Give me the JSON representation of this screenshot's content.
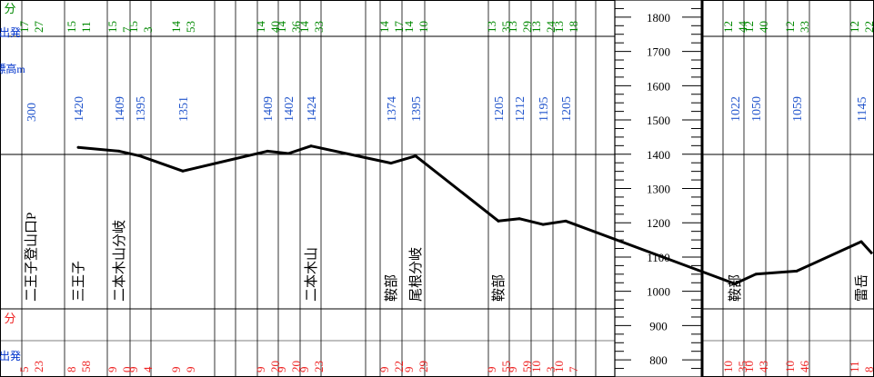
{
  "chart_data": {
    "type": "line",
    "xlabel": "",
    "ylabel": "",
    "ylim": [
      750,
      1850
    ],
    "grid": true,
    "colors": {
      "line": "#000000",
      "top": "#0033cc",
      "elev": "#2255cc",
      "green": "#008800",
      "red": "#ee2222",
      "grid": "#000000"
    },
    "header": {
      "tail_label": "分",
      "depart_label": "出発",
      "elev_label": "標高m",
      "time_label": "分",
      "bottom_depart": "出発"
    },
    "y_ticks": [
      1800,
      1700,
      1600,
      1500,
      1400,
      1300,
      1200,
      1100,
      1000,
      900,
      800
    ],
    "points": [
      {
        "name": "二王子登山口P",
        "elev": 300,
        "top_h": "17",
        "top_m": "27",
        "bot_h": "5",
        "bot_m": "23",
        "elev_label": "300"
      },
      {
        "name": "三王子",
        "elev": 1420,
        "top_h": "15",
        "top_m": "11",
        "bot_h": "8",
        "bot_m": "58",
        "elev_label": "1420"
      },
      {
        "name": "二本木山分岐",
        "elev": 1409,
        "top_h": "15",
        "top_m": "7",
        "bot_h": "9",
        "bot_m": "0",
        "elev_label": "1409"
      },
      {
        "name": "",
        "elev": 1395,
        "top_h": "15",
        "top_m": "3",
        "bot_h": "9",
        "bot_m": "4",
        "elev_label": "1395"
      },
      {
        "name": "",
        "elev": 1351,
        "top_h": "14",
        "top_m": "53",
        "bot_h": "9",
        "bot_m": "9",
        "elev_label": "1351"
      },
      {
        "name": "",
        "elev": 1409,
        "top_h": "14",
        "top_m": "40",
        "bot_h": "9",
        "bot_m": "20",
        "elev_label": "1409"
      },
      {
        "name": "",
        "elev": 1402,
        "top_h": "14",
        "top_m": "36",
        "bot_h": "9",
        "bot_m": "20",
        "elev_label": "1402"
      },
      {
        "name": "二本木山",
        "elev": 1424,
        "top_h": "14",
        "top_m": "33",
        "bot_h": "9",
        "bot_m": "23",
        "elev_label": "1424"
      },
      {
        "name": "鞍部",
        "elev": 1374,
        "top_h": "14",
        "top_m": "17",
        "bot_h": "9",
        "bot_m": "22",
        "elev_label": "1374"
      },
      {
        "name": "尾根分岐",
        "elev": 1395,
        "top_h": "14",
        "top_m": "10",
        "bot_h": "9",
        "bot_m": "29",
        "elev_label": "1395"
      },
      {
        "name": "鞍部",
        "elev": 1205,
        "top_h": "13",
        "top_m": "35",
        "bot_h": "9",
        "bot_m": "55",
        "elev_label": "1205"
      },
      {
        "name": "",
        "elev": 1212,
        "top_h": "13",
        "top_m": "29",
        "bot_h": "9",
        "bot_m": "59",
        "elev_label": "1212"
      },
      {
        "name": "",
        "elev": 1195,
        "top_h": "13",
        "top_m": "24",
        "bot_h": "10",
        "bot_m": "3",
        "elev_label": "1195"
      },
      {
        "name": "",
        "elev": 1205,
        "top_h": "13",
        "top_m": "18",
        "bot_h": "10",
        "bot_m": "7",
        "elev_label": "1205"
      },
      {
        "name": "鞍部",
        "elev": 1022,
        "top_h": "12",
        "top_m": "44",
        "bot_h": "10",
        "bot_m": "35",
        "elev_label": "1022"
      },
      {
        "name": "",
        "elev": 1050,
        "top_h": "12",
        "top_m": "40",
        "bot_h": "10",
        "bot_m": "43",
        "elev_label": "1050"
      },
      {
        "name": "",
        "elev": 1059,
        "top_h": "12",
        "top_m": "33",
        "bot_h": "10",
        "bot_m": "46",
        "elev_label": "1059"
      },
      {
        "name": "雷岳",
        "elev": 1145,
        "top_h": "12",
        "top_m": "22",
        "bot_h": "11",
        "bot_m": "8",
        "elev_label": "1145"
      }
    ]
  }
}
